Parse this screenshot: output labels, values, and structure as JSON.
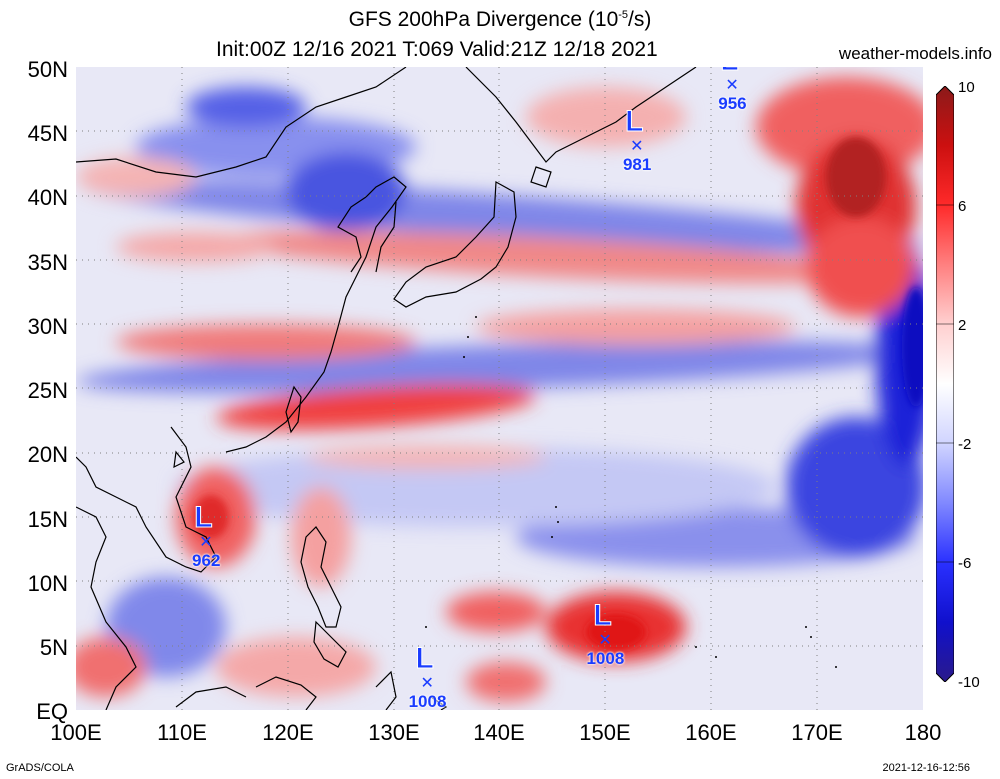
{
  "title": {
    "line1_prefix": "GFS 200hPa Divergence (10",
    "line1_exp": "-5",
    "line1_suffix": "/s)",
    "line2": "Init:00Z 12/16 2021 T:069 Valid:21Z 12/18 2021"
  },
  "site": "weather-models.info",
  "y_axis": [
    "50N",
    "45N",
    "40N",
    "35N",
    "30N",
    "25N",
    "20N",
    "15N",
    "10N",
    "5N",
    "EQ"
  ],
  "x_axis": [
    "100E",
    "110E",
    "120E",
    "130E",
    "140E",
    "150E",
    "160E",
    "170E",
    "180"
  ],
  "colorbar": {
    "labels": [
      "10",
      "6",
      "2",
      "-2",
      "-6",
      "-10"
    ],
    "colors_top_to_bottom": [
      "#8b1a1a",
      "#cc1010",
      "#ff2a2a",
      "#ff8080",
      "#ffd0d0",
      "#ffffff",
      "#d0d4ff",
      "#8088ff",
      "#2a30ff",
      "#1010cc",
      "#2a1a8b"
    ]
  },
  "lows": [
    {
      "mark": "L",
      "pressure": "956",
      "lon": 162,
      "lat": 48.5
    },
    {
      "mark": "L",
      "pressure": "981",
      "lon": 153,
      "lat": 43.8
    },
    {
      "mark": "L",
      "pressure": "962",
      "lon": 112.3,
      "lat": 13
    },
    {
      "mark": "L",
      "pressure": "1008",
      "lon": 150,
      "lat": 5.4
    },
    {
      "mark": "L",
      "pressure": "1008",
      "lon": 133.2,
      "lat": 2
    }
  ],
  "footer": {
    "left": "GrADS/COLA",
    "right": "2021-12-16-12:56"
  }
}
